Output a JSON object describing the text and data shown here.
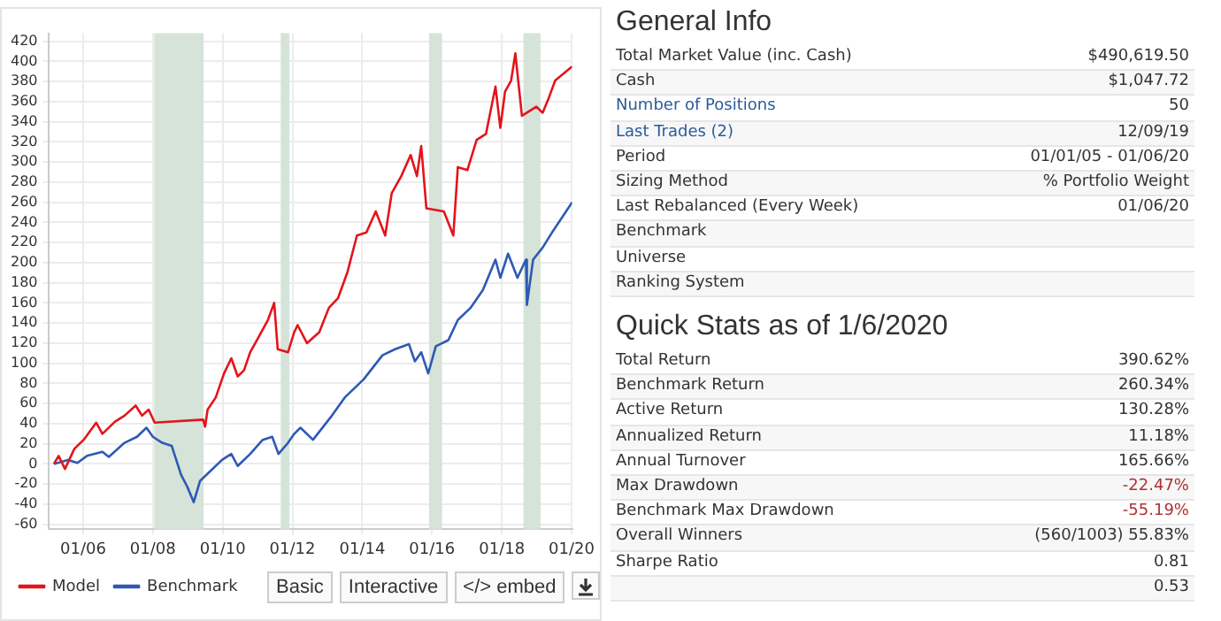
{
  "chart_data": [
    {
      "type": "line",
      "xlim": [
        "2005-01-01",
        "2020-01-06"
      ],
      "ylim": [
        -65,
        428
      ],
      "xticks": [
        {
          "value": "2006-01-01",
          "label": "01/06"
        },
        {
          "value": "2008-01-01",
          "label": "01/08"
        },
        {
          "value": "2010-01-01",
          "label": "01/10"
        },
        {
          "value": "2012-01-01",
          "label": "01/12"
        },
        {
          "value": "2014-01-01",
          "label": "01/14"
        },
        {
          "value": "2016-01-01",
          "label": "01/16"
        },
        {
          "value": "2018-01-01",
          "label": "01/18"
        },
        {
          "value": "2020-01-01",
          "label": "01/20"
        }
      ],
      "yticks": [
        -60,
        -40,
        -20,
        0,
        20,
        40,
        60,
        80,
        100,
        120,
        140,
        160,
        180,
        200,
        220,
        240,
        260,
        280,
        300,
        320,
        340,
        360,
        380,
        400,
        420
      ],
      "grid": true,
      "legend": "bottom",
      "bands": [
        {
          "axis": "x",
          "from": "2008-01-15",
          "to": "2009-06-15",
          "color": "#d5e3d8"
        },
        {
          "axis": "x",
          "from": "2011-09-01",
          "to": "2011-12-01",
          "color": "#d5e3d8"
        },
        {
          "axis": "x",
          "from": "2015-12-01",
          "to": "2016-04-15",
          "color": "#d5e3d8"
        },
        {
          "axis": "x",
          "from": "2018-08-15",
          "to": "2019-02-10",
          "color": "#d5e3d8"
        }
      ],
      "annotations": [
        "Basic",
        "Interactive",
        "</> embed"
      ],
      "series": [
        {
          "name": "Model",
          "color": "#e3141b",
          "x": [
            "2005-03-01",
            "2005-04-20",
            "2005-06-25",
            "2005-10-01",
            "2006-01-07",
            "2006-05-18",
            "2006-07-22",
            "2006-12-01",
            "2007-03-10",
            "2007-07-05",
            "2007-09-10",
            "2007-11-18",
            "2008-01-20",
            "2009-06-10",
            "2009-07-01",
            "2009-07-27",
            "2009-10-20",
            "2010-01-15",
            "2010-04-01",
            "2010-06-07",
            "2010-08-12",
            "2010-10-16",
            "2011-01-05",
            "2011-04-19",
            "2011-06-24",
            "2011-07-31",
            "2011-11-16",
            "2012-01-20",
            "2012-02-24",
            "2012-06-01",
            "2012-10-08",
            "2013-01-16",
            "2013-04-23",
            "2013-07-31",
            "2013-11-06",
            "2014-02-13",
            "2014-05-22",
            "2014-08-29",
            "2014-11-05",
            "2015-02-13",
            "2015-05-22",
            "2015-07-27",
            "2015-09-10",
            "2015-11-03",
            "2016-05-04",
            "2016-08-11",
            "2016-09-27",
            "2017-01-05",
            "2017-04-12",
            "2017-07-19",
            "2017-10-26",
            "2017-12-16",
            "2018-02-03",
            "2018-04-08",
            "2018-05-22",
            "2018-07-30",
            "2018-12-28",
            "2019-03-04",
            "2019-05-08",
            "2019-07-13",
            "2020-01-06"
          ],
          "values": [
            0,
            8,
            -5,
            15,
            24,
            41,
            30,
            42,
            48,
            58,
            48,
            54,
            41,
            44,
            37,
            54,
            66,
            90,
            105,
            87,
            93,
            111,
            125,
            143,
            160,
            114,
            111,
            131,
            138,
            120,
            131,
            155,
            165,
            191,
            227,
            230,
            251,
            227,
            269,
            286,
            307,
            286,
            316,
            254,
            251,
            227,
            295,
            292,
            322,
            328,
            375,
            334,
            370,
            381,
            408,
            346,
            355,
            349,
            364,
            381,
            395
          ]
        },
        {
          "name": "Benchmark",
          "color": "#2e59b5",
          "x": [
            "2005-03-01",
            "2005-07-26",
            "2005-11-02",
            "2006-02-10",
            "2006-07-22",
            "2006-09-27",
            "2007-03-10",
            "2007-07-19",
            "2007-10-26",
            "2008-01-01",
            "2008-04-08",
            "2008-07-16",
            "2008-10-23",
            "2008-12-28",
            "2009-03-04",
            "2009-05-08",
            "2009-08-15",
            "2009-12-25",
            "2010-04-01",
            "2010-06-07",
            "2010-10-16",
            "2011-02-24",
            "2011-06-03",
            "2011-08-08",
            "2011-11-16",
            "2012-01-20",
            "2012-03-25",
            "2012-08-03",
            "2013-02-17",
            "2013-07-01",
            "2014-01-15",
            "2014-07-31",
            "2014-12-10",
            "2015-05-05",
            "2015-07-05",
            "2015-09-10",
            "2015-11-22",
            "2016-02-10",
            "2016-06-20",
            "2016-09-27",
            "2017-02-06",
            "2017-06-17",
            "2017-10-26",
            "2017-12-16",
            "2018-03-07",
            "2018-06-13",
            "2018-09-10",
            "2018-09-20",
            "2018-11-24",
            "2019-03-04",
            "2019-06-10",
            "2020-01-06"
          ],
          "values": [
            0,
            4,
            1,
            8,
            12,
            7,
            21,
            27,
            36,
            27,
            21,
            18,
            -11,
            -23,
            -38,
            -17,
            -8,
            4,
            10,
            -2,
            10,
            24,
            27,
            10,
            21,
            30,
            36,
            24,
            48,
            66,
            84,
            108,
            114,
            119,
            102,
            111,
            90,
            117,
            123,
            143,
            155,
            173,
            203,
            185,
            209,
            185,
            203,
            158,
            203,
            215,
            230,
            260
          ]
        }
      ]
    },
    {
      "type": "other",
      "title": "General Info",
      "annotations": [
        "Total Market Value (inc. Cash)",
        "$490,619.50",
        "Cash",
        "$1,047.72",
        "Number of Positions",
        "50",
        "Last Trades (2)",
        "12/09/19",
        "Period",
        "01/01/05 - 01/06/20",
        "Sizing Method",
        "% Portfolio Weight",
        "Last Rebalanced (Every Week)",
        "01/06/20",
        "Benchmark",
        null,
        "Universe",
        null,
        "Ranking System",
        null
      ]
    },
    {
      "type": "other",
      "title": "Quick Stats as of 1/6/2020",
      "annotations": [
        "Total Return",
        "390.62%",
        "Benchmark Return",
        "260.34%",
        "Active Return",
        "130.28%",
        "Annualized Return",
        "11.18%",
        "Annual Turnover",
        "165.66%",
        "Max Drawdown",
        "-22.47%",
        "Benchmark Max Drawdown",
        "-55.19%",
        "Overall Winners",
        "(560/1003) 55.83%",
        "Sharpe Ratio",
        "0.81",
        null,
        "0.53"
      ]
    }
  ]
}
